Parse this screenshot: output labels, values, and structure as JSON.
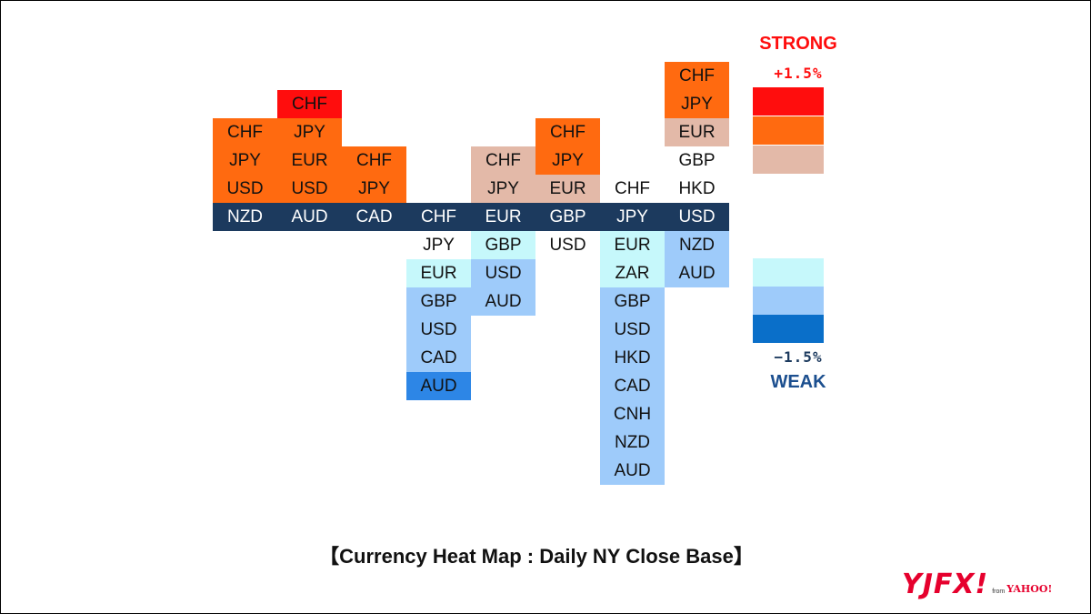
{
  "chart_data": {
    "type": "heatmap",
    "columns": [
      {
        "base": "NZD",
        "stronger": [
          "USD",
          "JPY",
          "CHF"
        ],
        "weaker": []
      },
      {
        "base": "AUD",
        "stronger": [
          "USD",
          "EUR",
          "JPY",
          "CHF"
        ],
        "weaker": []
      },
      {
        "base": "CAD",
        "stronger": [
          "JPY",
          "CHF"
        ],
        "weaker": []
      },
      {
        "base": "CHF",
        "stronger": [],
        "weaker": [
          "JPY",
          "EUR",
          "GBP",
          "USD",
          "CAD",
          "AUD"
        ]
      },
      {
        "base": "EUR",
        "stronger": [
          "JPY",
          "CHF"
        ],
        "weaker": [
          "GBP",
          "USD",
          "AUD"
        ]
      },
      {
        "base": "GBP",
        "stronger": [
          "EUR",
          "JPY",
          "CHF"
        ],
        "weaker": [
          "USD"
        ]
      },
      {
        "base": "JPY",
        "stronger": [
          "CHF"
        ],
        "weaker": [
          "EUR",
          "ZAR",
          "GBP",
          "USD",
          "HKD",
          "CAD",
          "CNH",
          "NZD",
          "AUD"
        ]
      },
      {
        "base": "USD",
        "stronger": [
          "HKD",
          "GBP",
          "EUR",
          "JPY",
          "CHF"
        ],
        "weaker": [
          "NZD",
          "AUD"
        ]
      }
    ],
    "cell_levels": {
      "NZD": {
        "stronger": [
          2,
          2,
          2
        ]
      },
      "AUD": {
        "stronger": [
          2,
          2,
          2,
          3
        ]
      },
      "CAD": {
        "stronger": [
          2,
          2
        ]
      },
      "CHF": {
        "weaker": [
          0,
          -1,
          -2,
          -2,
          -2,
          -3
        ]
      },
      "EUR": {
        "stronger": [
          1,
          1
        ],
        "weaker": [
          -1,
          -2,
          -2
        ]
      },
      "GBP": {
        "stronger": [
          1,
          2,
          2
        ],
        "weaker": [
          0
        ]
      },
      "JPY": {
        "stronger": [
          0
        ],
        "weaker": [
          -1,
          -1,
          -2,
          -2,
          -2,
          -2,
          -2,
          -2,
          -2
        ]
      },
      "USD": {
        "stronger": [
          0,
          0,
          1,
          2,
          2
        ],
        "weaker": [
          -2,
          -2
        ]
      }
    },
    "colors": {
      "3": "#ff0d0d",
      "2": "#ff6a10",
      "1": "#e3b9a8",
      "0": "#ffffff",
      "-1": "#c6f8fb",
      "-2": "#9ecbfa",
      "-3": "#2d86e6",
      "-4": "#0a6fc9",
      "base": "#1c3a5e"
    },
    "legend": {
      "strong_label": "STRONG",
      "strong_value": "+1.5%",
      "weak_label": "WEAK",
      "weak_value": "−1.5%",
      "strong_color": "#ff0d0d",
      "weak_color": "#1c4f8f",
      "scale_top": [
        3,
        2,
        1
      ],
      "scale_bottom": [
        -1,
        -2,
        -4
      ]
    },
    "title": "【Currency Heat Map : Daily NY Close Base】"
  },
  "logo": {
    "main": "YJFX!",
    "from": "from",
    "yahoo": "YAHOO!"
  }
}
